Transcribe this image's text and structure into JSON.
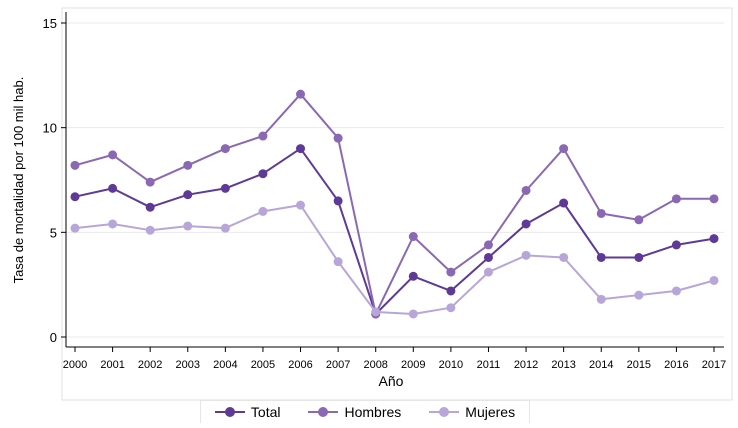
{
  "chart_data": {
    "type": "line",
    "title": "",
    "xlabel": "Año",
    "ylabel": "Tasa de mortalidad por 100 mil hab.",
    "x": [
      "2000",
      "2001",
      "2002",
      "2003",
      "2004",
      "2005",
      "2006",
      "2007",
      "2008",
      "2009",
      "2010",
      "2011",
      "2012",
      "2013",
      "2014",
      "2015",
      "2016",
      "2017"
    ],
    "ylim": [
      0,
      15
    ],
    "yticks": [
      "0",
      "5",
      "10",
      "15"
    ],
    "grid": true,
    "legend_position": "bottom",
    "series": [
      {
        "name": "Total",
        "color": "#5e3a96",
        "values": [
          6.7,
          7.1,
          6.2,
          6.8,
          7.1,
          7.8,
          9.0,
          6.5,
          1.1,
          2.9,
          2.2,
          3.8,
          5.4,
          6.4,
          3.8,
          3.8,
          4.4,
          4.7
        ]
      },
      {
        "name": "Hombres",
        "color": "#8a68b4",
        "values": [
          8.2,
          8.7,
          7.4,
          8.2,
          9.0,
          9.6,
          11.6,
          9.5,
          1.1,
          4.8,
          3.1,
          4.4,
          7.0,
          9.0,
          5.9,
          5.6,
          6.6,
          6.6
        ]
      },
      {
        "name": "Mujeres",
        "color": "#b8a6d8",
        "values": [
          5.2,
          5.4,
          5.1,
          5.3,
          5.2,
          6.0,
          6.3,
          3.6,
          1.2,
          1.1,
          1.4,
          3.1,
          3.9,
          3.8,
          1.8,
          2.0,
          2.2,
          2.7
        ]
      }
    ]
  }
}
